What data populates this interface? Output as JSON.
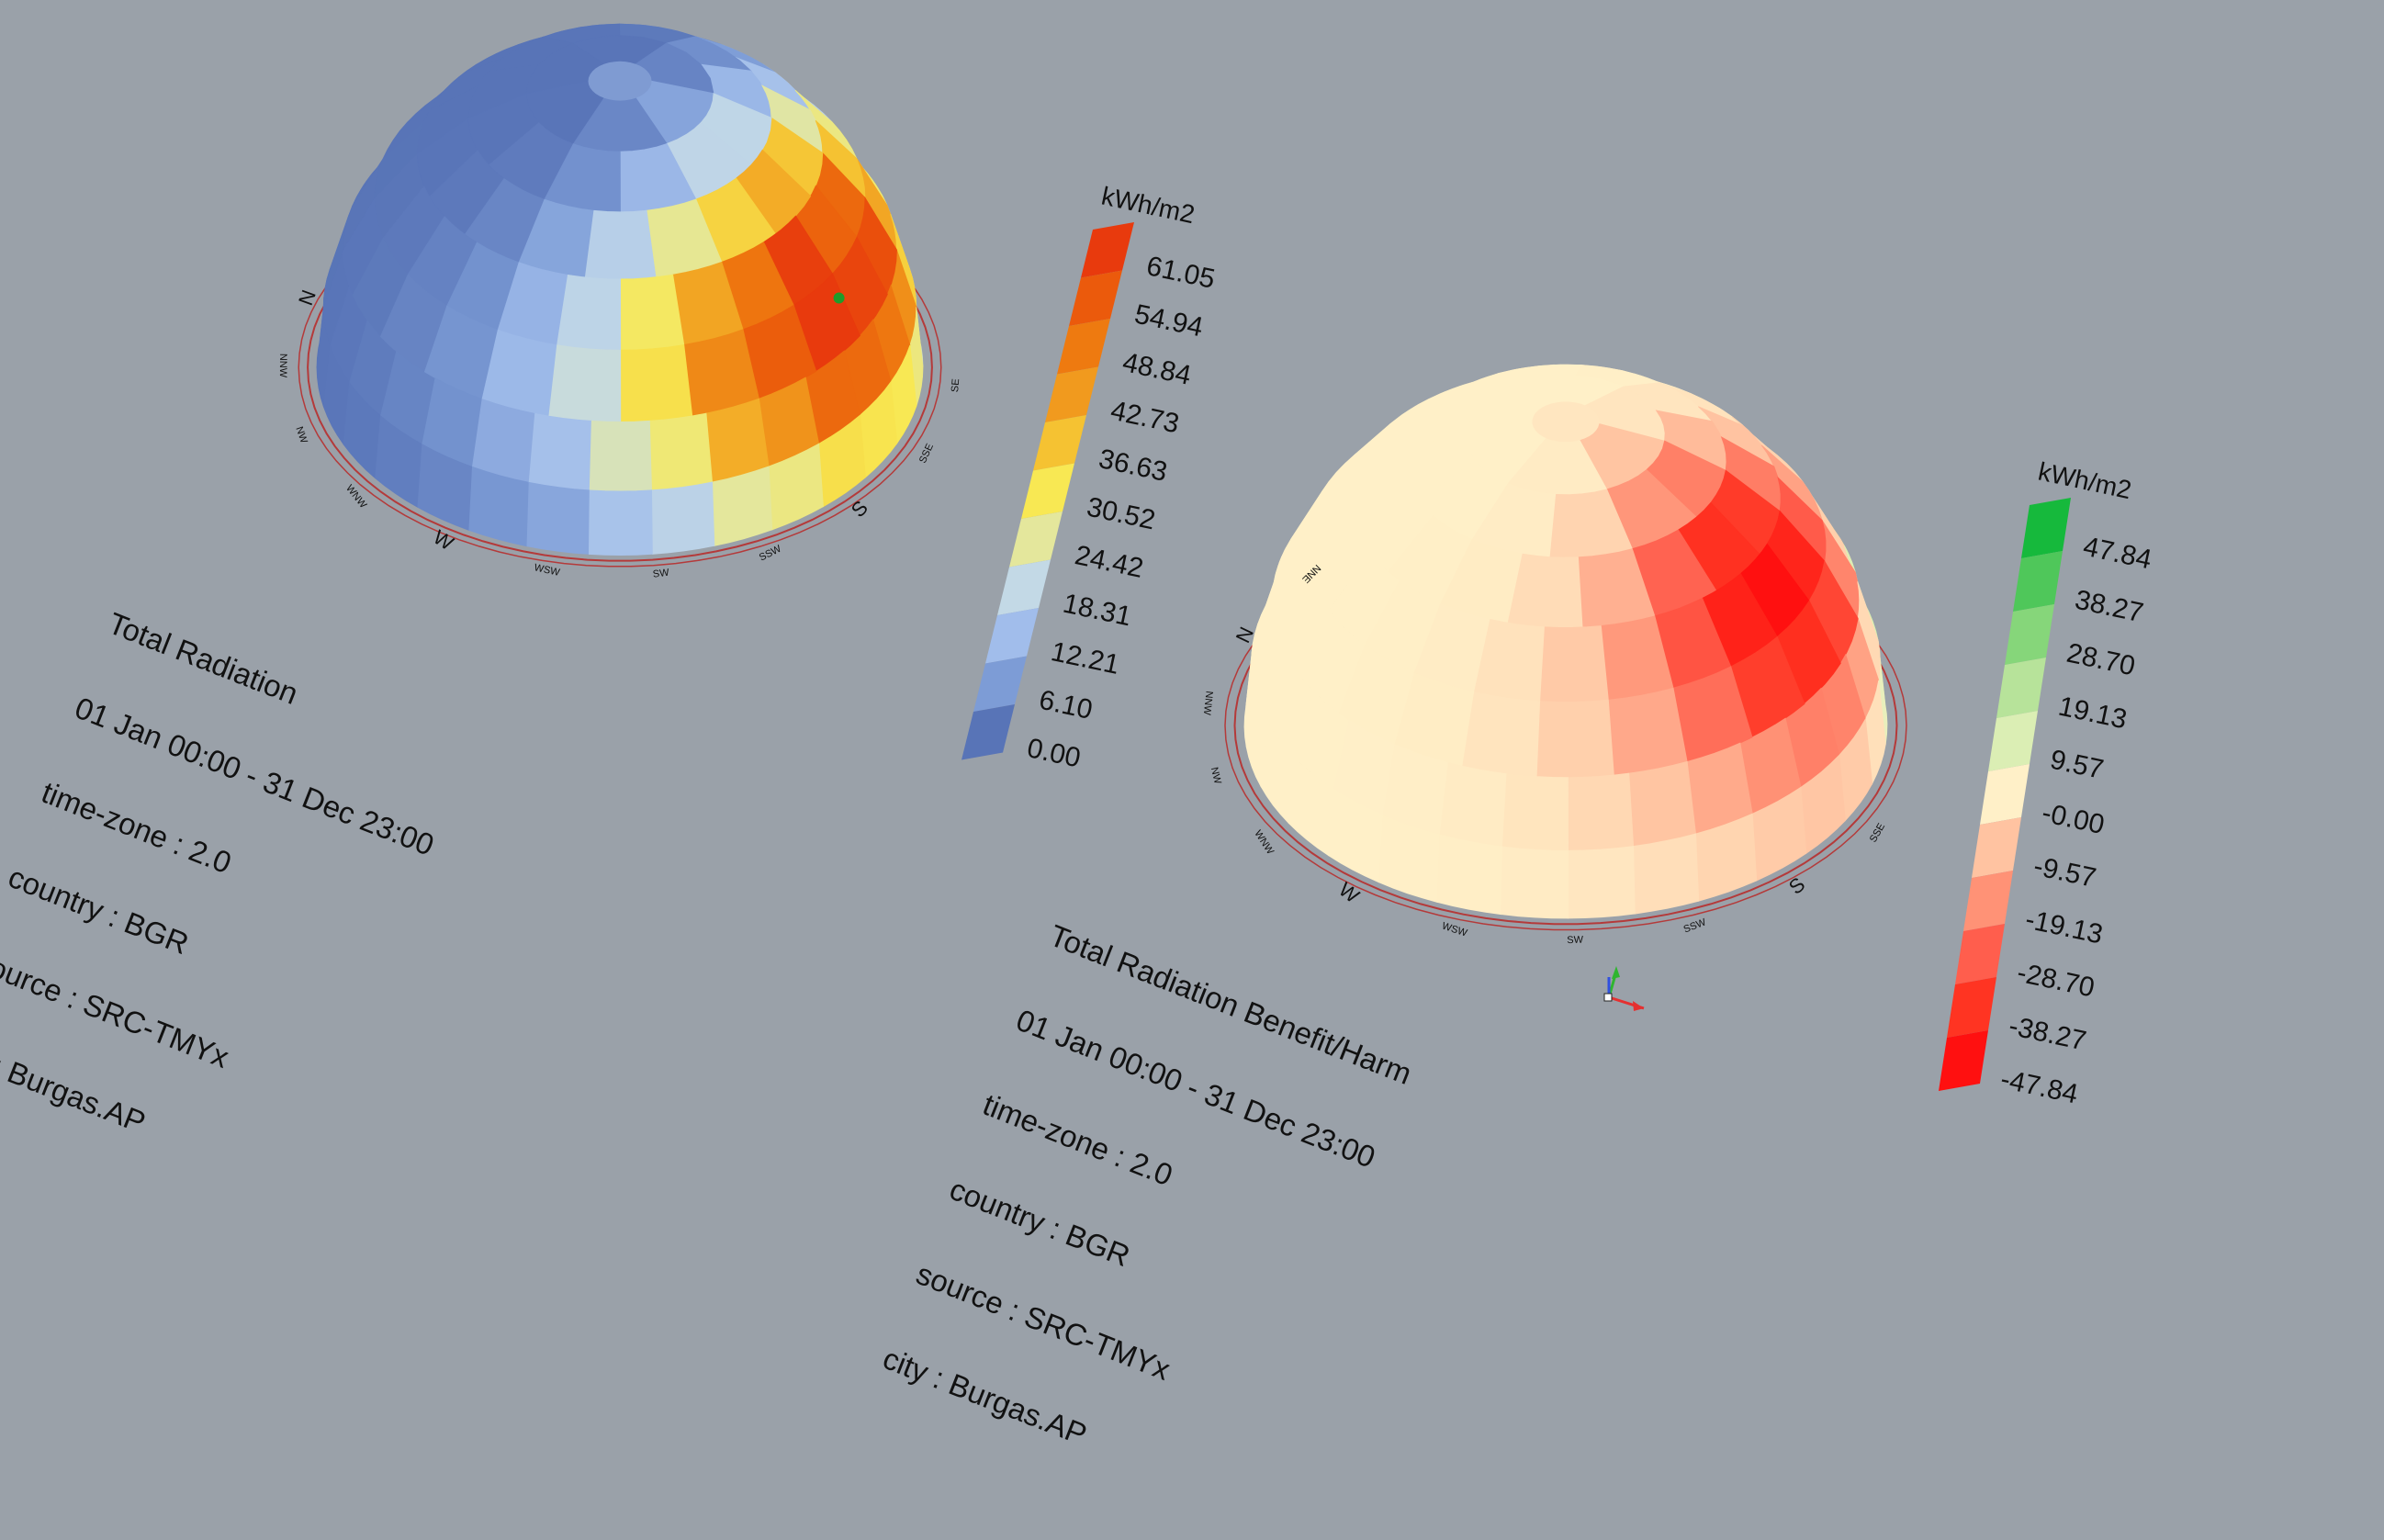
{
  "dome1": {
    "info": [
      "Total Radiation",
      "01 Jan 00:00 - 31 Dec 23:00",
      "time-zone : 2.0",
      "country : BGR",
      "source : SRC-TMYx",
      "city : Burgas.AP"
    ],
    "legend": {
      "unit": "kWh/m2",
      "labels": [
        "61.05",
        "54.94",
        "48.84",
        "42.73",
        "36.63",
        "30.52",
        "24.42",
        "18.31",
        "12.21",
        "6.10",
        "0.00"
      ],
      "colors": [
        "#e83a0d",
        "#eb5a0c",
        "#ee7a10",
        "#f19a1e",
        "#f5c232",
        "#f8e853",
        "#e4e79c",
        "#c3d9e6",
        "#a1bdeb",
        "#7d9cd6",
        "#5874b7"
      ]
    },
    "compass": [
      "N",
      "NNW",
      "NW",
      "WNW",
      "W",
      "WSW",
      "SW",
      "SSW",
      "S",
      "SSE",
      "SE"
    ]
  },
  "dome2": {
    "info": [
      "Total Radiation Benefit/Harm",
      "01 Jan 00:00 - 31 Dec 23:00",
      "time-zone : 2.0",
      "country : BGR",
      "source : SRC-TMYx",
      "city : Burgas.AP"
    ],
    "legend": {
      "unit": "kWh/m2",
      "labels": [
        "47.84",
        "38.27",
        "28.70",
        "19.13",
        "9.57",
        "-0.00",
        "-9.57",
        "-19.13",
        "-28.70",
        "-38.27",
        "-47.84"
      ],
      "colors": [
        "#16b93c",
        "#4fc75a",
        "#86d67a",
        "#b7e39a",
        "#dbeeb4",
        "#fff0c8",
        "#ffc3a1",
        "#ff9276",
        "#ff5e4d",
        "#ff3422",
        "#ff1010"
      ]
    },
    "compass": [
      "NNE",
      "N",
      "NNW",
      "NW",
      "WNW",
      "W",
      "WSW",
      "SW",
      "SSW",
      "S",
      "SSE"
    ]
  }
}
